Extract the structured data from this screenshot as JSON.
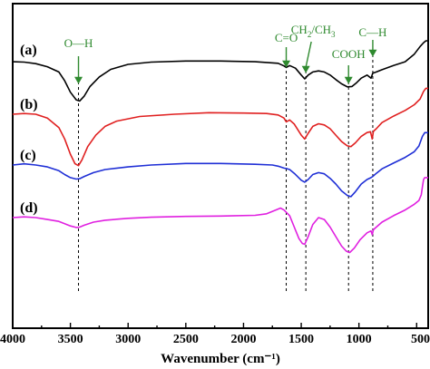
{
  "chart_data": {
    "type": "line",
    "xlabel": "Wavenumber (cm⁻¹)",
    "ylabel": "",
    "xlim": [
      4000,
      400
    ],
    "x_reversed": true,
    "x_ticks": [
      4000,
      3500,
      3000,
      2500,
      2000,
      1500,
      1000,
      500
    ],
    "y_ticks": [],
    "grid": false,
    "legend": "none",
    "series": [
      {
        "name": "(a)",
        "color": "#000000",
        "points": [
          [
            4000,
            0.5
          ],
          [
            3900,
            0.6
          ],
          [
            3800,
            1.0
          ],
          [
            3700,
            1.8
          ],
          [
            3600,
            3.2
          ],
          [
            3550,
            5.5
          ],
          [
            3500,
            8.5
          ],
          [
            3450,
            10.5
          ],
          [
            3420,
            10.8
          ],
          [
            3380,
            9.5
          ],
          [
            3330,
            7.0
          ],
          [
            3250,
            4.5
          ],
          [
            3150,
            2.5
          ],
          [
            3000,
            1.2
          ],
          [
            2800,
            0.6
          ],
          [
            2500,
            0.3
          ],
          [
            2200,
            0.3
          ],
          [
            1900,
            0.5
          ],
          [
            1700,
            0.9
          ],
          [
            1650,
            1.6
          ],
          [
            1630,
            2.0
          ],
          [
            1600,
            1.5
          ],
          [
            1550,
            2.2
          ],
          [
            1500,
            4.0
          ],
          [
            1470,
            5.0
          ],
          [
            1440,
            4.0
          ],
          [
            1400,
            3.2
          ],
          [
            1350,
            2.9
          ],
          [
            1300,
            3.2
          ],
          [
            1250,
            4.0
          ],
          [
            1200,
            5.2
          ],
          [
            1150,
            6.3
          ],
          [
            1100,
            7.1
          ],
          [
            1060,
            7.0
          ],
          [
            1020,
            6.0
          ],
          [
            980,
            4.8
          ],
          [
            930,
            4.0
          ],
          [
            895,
            4.8
          ],
          [
            880,
            3.5
          ],
          [
            850,
            3.2
          ],
          [
            800,
            2.6
          ],
          [
            700,
            1.5
          ],
          [
            600,
            0.5
          ],
          [
            520,
            -1.5
          ],
          [
            470,
            -3.5
          ],
          [
            440,
            -4.5
          ],
          [
            420,
            -5.0
          ],
          [
            400,
            -5.0
          ]
        ]
      },
      {
        "name": "(b)",
        "color": "#e02020",
        "points": [
          [
            4000,
            0.0
          ],
          [
            3900,
            -0.2
          ],
          [
            3800,
            0.0
          ],
          [
            3700,
            1.0
          ],
          [
            3600,
            3.5
          ],
          [
            3550,
            6.5
          ],
          [
            3500,
            10.5
          ],
          [
            3460,
            13.0
          ],
          [
            3430,
            13.5
          ],
          [
            3400,
            12.0
          ],
          [
            3350,
            8.5
          ],
          [
            3280,
            5.5
          ],
          [
            3200,
            3.2
          ],
          [
            3100,
            1.8
          ],
          [
            2900,
            0.6
          ],
          [
            2600,
            0.0
          ],
          [
            2300,
            -0.4
          ],
          [
            2000,
            -0.3
          ],
          [
            1800,
            -0.2
          ],
          [
            1700,
            0.2
          ],
          [
            1650,
            1.0
          ],
          [
            1630,
            2.0
          ],
          [
            1600,
            1.5
          ],
          [
            1560,
            2.6
          ],
          [
            1500,
            5.5
          ],
          [
            1470,
            6.5
          ],
          [
            1440,
            5.0
          ],
          [
            1400,
            3.2
          ],
          [
            1350,
            2.5
          ],
          [
            1300,
            2.8
          ],
          [
            1250,
            3.8
          ],
          [
            1200,
            5.5
          ],
          [
            1150,
            7.2
          ],
          [
            1100,
            8.3
          ],
          [
            1070,
            8.5
          ],
          [
            1030,
            7.5
          ],
          [
            980,
            5.8
          ],
          [
            930,
            4.8
          ],
          [
            900,
            4.6
          ],
          [
            885,
            6.5
          ],
          [
            875,
            4.5
          ],
          [
            850,
            3.8
          ],
          [
            800,
            2.2
          ],
          [
            700,
            0.5
          ],
          [
            600,
            -1.0
          ],
          [
            520,
            -2.5
          ],
          [
            470,
            -4.0
          ],
          [
            440,
            -6.0
          ],
          [
            420,
            -6.8
          ],
          [
            400,
            -6.8
          ]
        ]
      },
      {
        "name": "(c)",
        "color": "#1f2fd6",
        "points": [
          [
            4000,
            0.0
          ],
          [
            3900,
            -0.3
          ],
          [
            3800,
            0.0
          ],
          [
            3700,
            0.5
          ],
          [
            3600,
            1.5
          ],
          [
            3550,
            2.5
          ],
          [
            3500,
            3.3
          ],
          [
            3450,
            3.7
          ],
          [
            3420,
            3.6
          ],
          [
            3380,
            3.0
          ],
          [
            3300,
            2.0
          ],
          [
            3200,
            1.2
          ],
          [
            3000,
            0.5
          ],
          [
            2800,
            0.0
          ],
          [
            2500,
            -0.4
          ],
          [
            2200,
            -0.4
          ],
          [
            1900,
            -0.2
          ],
          [
            1750,
            0.0
          ],
          [
            1700,
            0.3
          ],
          [
            1650,
            0.8
          ],
          [
            1620,
            1.0
          ],
          [
            1600,
            1.2
          ],
          [
            1560,
            2.2
          ],
          [
            1500,
            4.0
          ],
          [
            1470,
            4.5
          ],
          [
            1440,
            3.8
          ],
          [
            1400,
            2.5
          ],
          [
            1350,
            2.0
          ],
          [
            1300,
            2.3
          ],
          [
            1250,
            3.5
          ],
          [
            1200,
            5.0
          ],
          [
            1150,
            6.8
          ],
          [
            1100,
            8.0
          ],
          [
            1070,
            8.3
          ],
          [
            1030,
            7.0
          ],
          [
            980,
            5.0
          ],
          [
            930,
            3.8
          ],
          [
            895,
            3.3
          ],
          [
            880,
            3.0
          ],
          [
            850,
            2.2
          ],
          [
            800,
            1.0
          ],
          [
            700,
            -0.5
          ],
          [
            600,
            -2.0
          ],
          [
            520,
            -3.5
          ],
          [
            480,
            -5.0
          ],
          [
            450,
            -7.5
          ],
          [
            430,
            -8.5
          ],
          [
            410,
            -8.5
          ],
          [
            400,
            -8.5
          ]
        ]
      },
      {
        "name": "(d)",
        "color": "#e020e0",
        "points": [
          [
            4000,
            0.0
          ],
          [
            3900,
            -0.2
          ],
          [
            3800,
            0.0
          ],
          [
            3700,
            0.5
          ],
          [
            3600,
            1.0
          ],
          [
            3550,
            1.6
          ],
          [
            3500,
            2.2
          ],
          [
            3450,
            2.6
          ],
          [
            3420,
            2.5
          ],
          [
            3380,
            2.0
          ],
          [
            3300,
            1.2
          ],
          [
            3200,
            0.7
          ],
          [
            3000,
            0.2
          ],
          [
            2800,
            -0.1
          ],
          [
            2500,
            -0.3
          ],
          [
            2200,
            -0.4
          ],
          [
            1900,
            -0.6
          ],
          [
            1800,
            -1.0
          ],
          [
            1720,
            -2.0
          ],
          [
            1680,
            -2.5
          ],
          [
            1650,
            -2.0
          ],
          [
            1600,
            -0.5
          ],
          [
            1560,
            2.5
          ],
          [
            1520,
            5.5
          ],
          [
            1490,
            6.8
          ],
          [
            1470,
            7.0
          ],
          [
            1440,
            5.0
          ],
          [
            1400,
            1.8
          ],
          [
            1350,
            0.0
          ],
          [
            1300,
            0.5
          ],
          [
            1250,
            2.5
          ],
          [
            1200,
            5.0
          ],
          [
            1150,
            7.5
          ],
          [
            1110,
            8.8
          ],
          [
            1080,
            9.2
          ],
          [
            1040,
            8.0
          ],
          [
            990,
            5.8
          ],
          [
            930,
            4.0
          ],
          [
            895,
            3.5
          ],
          [
            885,
            4.5
          ],
          [
            875,
            3.2
          ],
          [
            850,
            2.5
          ],
          [
            800,
            1.2
          ],
          [
            700,
            -0.5
          ],
          [
            600,
            -2.0
          ],
          [
            520,
            -3.5
          ],
          [
            480,
            -4.5
          ],
          [
            460,
            -6.0
          ],
          [
            450,
            -8.0
          ],
          [
            440,
            -10.0
          ],
          [
            430,
            -10.5
          ],
          [
            415,
            -10.5
          ],
          [
            400,
            -10.5
          ]
        ]
      }
    ],
    "reference_lines": [
      {
        "x": 3430,
        "label": "O—H",
        "label_sub": ""
      },
      {
        "x": 1630,
        "label": "C=O",
        "label_sub": ""
      },
      {
        "x": 1460,
        "label": "CH",
        "label_sub": "2",
        "label_mid": "/CH",
        "label_sub2": "3"
      },
      {
        "x": 1090,
        "label": "COOH",
        "label_sub": ""
      },
      {
        "x": 880,
        "label": "C—H",
        "label_sub": ""
      }
    ],
    "annotation_color": "#2f8a2f"
  }
}
